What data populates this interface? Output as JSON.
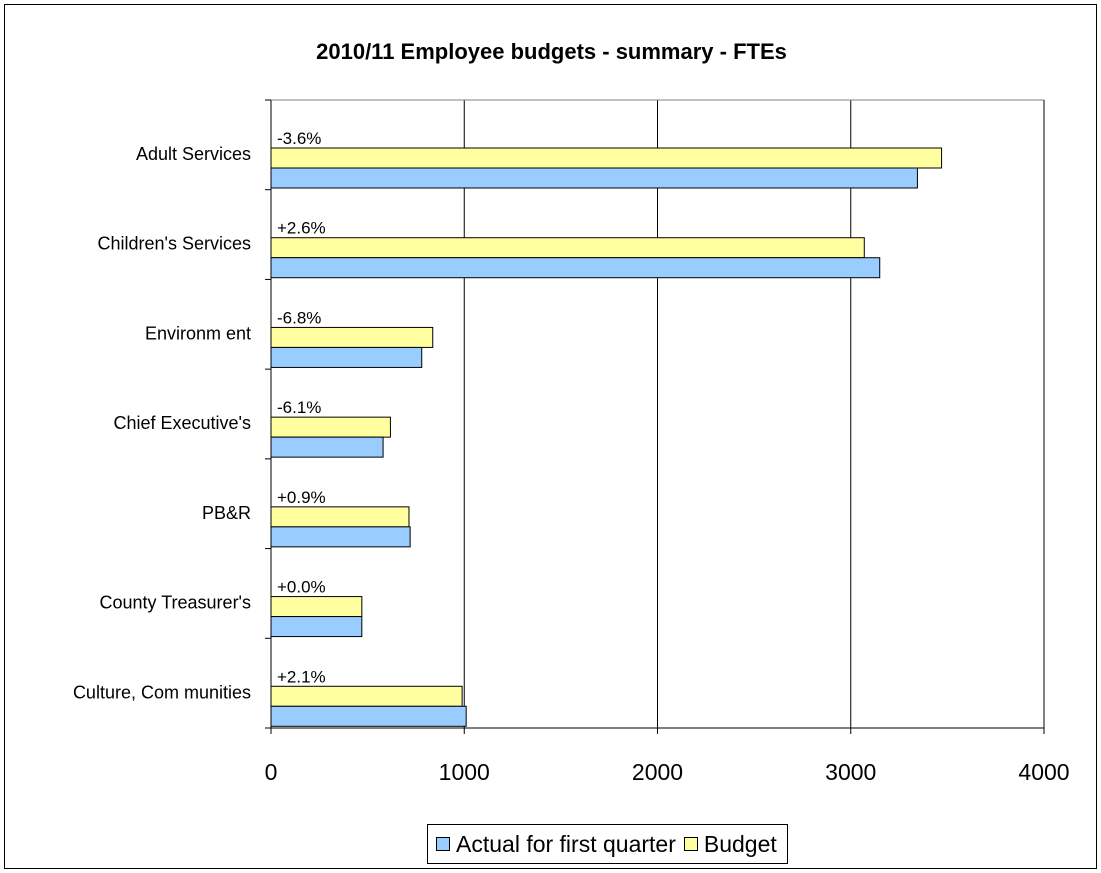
{
  "chart_data": {
    "type": "bar",
    "orientation": "horizontal",
    "title": "2010/11 Employee budgets - summary - FTEs",
    "categories": [
      "Adult Services",
      "Children's Services",
      "Environm ent",
      "Chief Executive's",
      "PB&R",
      "County Treasurer's",
      "Culture, Com munities"
    ],
    "series": [
      {
        "name": "Actual for first quarter",
        "color": "#99ccff",
        "values": [
          3345,
          3150,
          780,
          580,
          720,
          470,
          1010
        ]
      },
      {
        "name": "Budget",
        "color": "#ffffa0",
        "values": [
          3470,
          3070,
          837,
          618,
          714,
          470,
          989
        ]
      }
    ],
    "data_labels": [
      "-3.6%",
      "+2.6%",
      "-6.8%",
      "-6.1%",
      "+0.9%",
      "+0.0%",
      "+2.1%"
    ],
    "xlim": [
      0,
      4000
    ],
    "xticks": [
      "0",
      "1000",
      "2000",
      "3000",
      "4000"
    ],
    "grid": true,
    "legend_position": "bottom"
  }
}
